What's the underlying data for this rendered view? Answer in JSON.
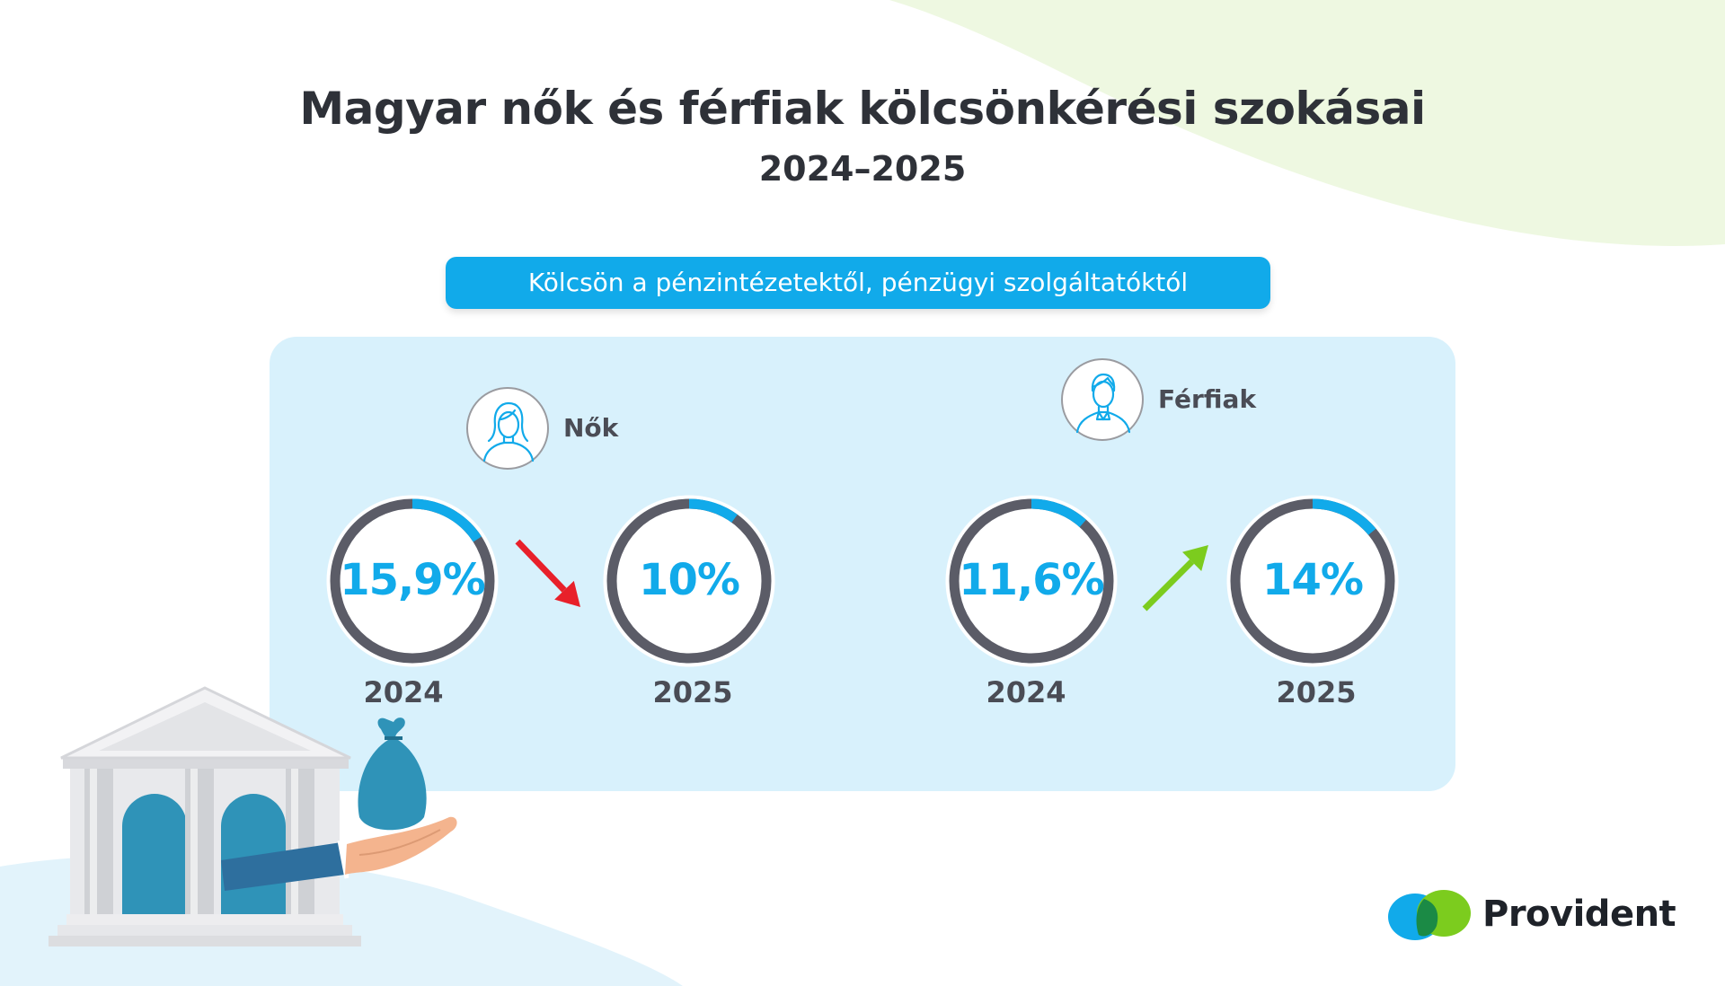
{
  "header": {
    "title": "Magyar nők és férfiak kölcsönkérési szokásai",
    "subtitle": "2024–2025"
  },
  "category": "Kölcsön a pénzintézetektől, pénzügyi szolgáltatóktól",
  "groups": [
    {
      "label": "Nők",
      "icon": "woman-icon",
      "trend": "down",
      "trend_color": "#e8202a"
    },
    {
      "label": "Férfiak",
      "icon": "man-icon",
      "trend": "up",
      "trend_color": "#7ccc1e"
    }
  ],
  "brand": {
    "name": "Provident"
  },
  "colors": {
    "accent": "#11aaea",
    "ring_track": "#5b5c67",
    "panel": "#d8f1fc",
    "down_arrow": "#e8202a",
    "up_arrow": "#7ccc1e"
  },
  "chart_data": {
    "type": "donut",
    "unit": "%",
    "series": [
      {
        "name": "Nők",
        "categories": [
          "2024",
          "2025"
        ],
        "values": [
          15.9,
          10
        ],
        "labels": [
          "15,9%",
          "10%"
        ]
      },
      {
        "name": "Férfiak",
        "categories": [
          "2024",
          "2025"
        ],
        "values": [
          11.6,
          14
        ],
        "labels": [
          "11,6%",
          "14%"
        ]
      }
    ]
  }
}
